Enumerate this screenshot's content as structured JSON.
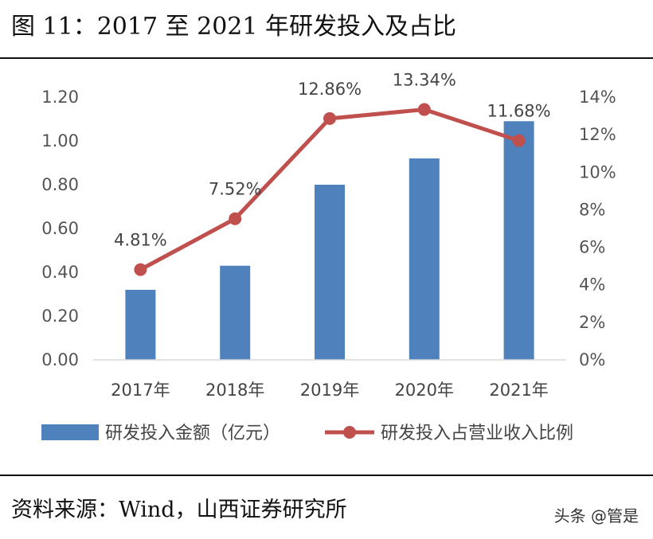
{
  "header": {
    "title": "图 11：2017 至 2021 年研发投入及占比"
  },
  "footer": {
    "source": "资料来源：Wind，山西证券研究所",
    "watermark": "头条 @管是"
  },
  "colors": {
    "bar": "#4f81bd",
    "line": "#c0504d",
    "axis": "#d9d9d9"
  },
  "chart_data": {
    "type": "bar",
    "title": "",
    "xlabel": "",
    "ylabel": "",
    "categories": [
      "2017年",
      "2018年",
      "2019年",
      "2020年",
      "2021年"
    ],
    "ylim": [
      0,
      1.2
    ],
    "y_ticks": [
      "0.00",
      "0.20",
      "0.40",
      "0.60",
      "0.80",
      "1.00",
      "1.20"
    ],
    "y2lim": [
      0,
      14
    ],
    "y2_ticks": [
      "0%",
      "2%",
      "4%",
      "6%",
      "8%",
      "10%",
      "12%",
      "14%"
    ],
    "legend_position": "bottom",
    "grid": false,
    "series": [
      {
        "name": "研发投入金额（亿元）",
        "type": "bar",
        "axis": "left",
        "values": [
          0.32,
          0.43,
          0.8,
          0.92,
          1.09
        ]
      },
      {
        "name": "研发投入占营业收入比例",
        "type": "line",
        "axis": "right",
        "values": [
          4.81,
          7.52,
          12.86,
          13.34,
          11.68
        ],
        "labels": [
          "4.81%",
          "7.52%",
          "12.86%",
          "13.34%",
          "11.68%"
        ]
      }
    ]
  }
}
